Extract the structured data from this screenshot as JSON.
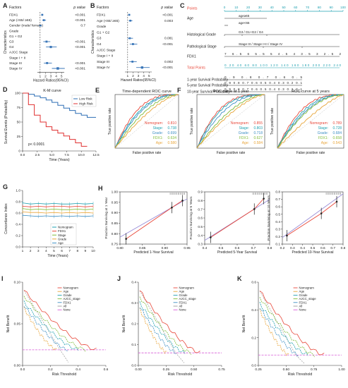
{
  "panels": {
    "A": {
      "letter": "A",
      "header_factor": "Factors",
      "header_p": "p value",
      "ylabel": "Characteristics",
      "xlabel": "Hazard Ratios(95%CI)",
      "ticks": [
        "1",
        "2",
        "3",
        "4",
        "5"
      ],
      "rows": [
        {
          "label": "FDX1",
          "p": "<0.001",
          "hr": 1.4,
          "lo": 1.2,
          "hi": 1.6
        },
        {
          "label": "Age (<65/ ≥65)",
          "p": "<0.001",
          "hr": 1.7,
          "lo": 1.4,
          "hi": 2.1
        },
        {
          "label": "Gender (male/ female)",
          "p": "0.7",
          "hr": 1.05,
          "lo": 0.8,
          "hi": 1.3
        },
        {
          "label": "Grade",
          "p": "",
          "hr": null
        },
        {
          "label": "G1 + G2",
          "p": "",
          "hr": null
        },
        {
          "label": "G3",
          "p": "<0.001",
          "hr": 2.2,
          "lo": 1.6,
          "hi": 2.9
        },
        {
          "label": "G4",
          "p": "<0.001",
          "hr": 3.0,
          "lo": 2.1,
          "hi": 4.1
        },
        {
          "label": "AJCC Stage",
          "p": "",
          "hr": null
        },
        {
          "label": "Stage I + II",
          "p": "",
          "hr": null
        },
        {
          "label": "Stage III",
          "p": "<0.001",
          "hr": 2.3,
          "lo": 1.7,
          "hi": 3.2
        },
        {
          "label": "Stage IV",
          "p": "<0.001",
          "hr": 4.3,
          "lo": 3.2,
          "hi": 5.6
        }
      ]
    },
    "B": {
      "letter": "B",
      "header_factor": "Factors",
      "header_p": "p value",
      "ylabel": "Characteristics",
      "xlabel": "Hazard Ratios(95%CI)",
      "ticks": [
        "1",
        "2",
        "3",
        "4",
        "5"
      ],
      "rows": [
        {
          "label": "FDX1",
          "p": "<0.001",
          "hr": 1.3,
          "lo": 1.1,
          "hi": 1.5
        },
        {
          "label": "Age (<65/ ≥65)",
          "p": "0.003",
          "hr": 1.5,
          "lo": 1.2,
          "hi": 1.9
        },
        {
          "label": "Grade",
          "p": "",
          "hr": null
        },
        {
          "label": "G1 + G2",
          "p": "",
          "hr": null
        },
        {
          "label": "G3",
          "p": "0.081",
          "hr": 1.4,
          "lo": 1.0,
          "hi": 2.0
        },
        {
          "label": "G4",
          "p": "<0.001",
          "hr": 2.0,
          "lo": 1.4,
          "hi": 2.8
        },
        {
          "label": "AJCC Stage",
          "p": "",
          "hr": null
        },
        {
          "label": "Stage I + II",
          "p": "",
          "hr": null
        },
        {
          "label": "Stage III",
          "p": "0.002",
          "hr": 1.9,
          "lo": 1.3,
          "hi": 2.7
        },
        {
          "label": "Stage IV",
          "p": "<0.001",
          "hr": 3.7,
          "lo": 2.6,
          "hi": 5.1
        }
      ]
    },
    "C": {
      "letter": "C",
      "points_label": "Points",
      "points_ticks": [
        "0",
        "10",
        "20",
        "30",
        "40",
        "50",
        "60",
        "70",
        "80",
        "90",
        "100"
      ],
      "rows": [
        {
          "label": "Age",
          "note": "age≥65"
        },
        {
          "label": "",
          "note": "age<65"
        },
        {
          "label": "Histological Grade",
          "note": "G3 / G1+G2 / G4"
        },
        {
          "label": "Pathological Stage",
          "note": "Stage III / Stage I+II / Stage IV"
        },
        {
          "label": "FDX1",
          "scale": "7  6.5  6  5.5  5  4.5  4  3.5  3  2.5  2"
        },
        {
          "label": "Total Points",
          "scale": "0  20  40  60  80  100  120  140  160  180  200  220  240"
        },
        {
          "label": "1-year Survival Probability",
          "scale": "0.9  0.8  0.7  0.6  0.5"
        },
        {
          "label": "5-year Survival Probability",
          "scale": "0.9  0.8  0.7 0.6 0.5 0.4 0.3 0.2  0.1"
        },
        {
          "label": "10-year Survival Probability",
          "scale": "0.9  0.8  0.7 0.6 0.5 0.4 0.3 0.2  0.1"
        }
      ]
    },
    "D": {
      "letter": "D",
      "title": "K-M curve",
      "legend": [
        "Low Risk",
        "High Risk"
      ],
      "ylabel": "Survival Events (Probability)",
      "xlabel": "Time (Years)",
      "pvalue": "p< 0.0001",
      "xticks": [
        "0.0",
        "2.5",
        "5.0",
        "7.5",
        "10.0",
        "12.5"
      ],
      "yticks": [
        "0",
        "25",
        "50",
        "75",
        "100"
      ]
    },
    "E": {
      "letter": "E",
      "title": "Time-dependent ROC curve",
      "ylabel": "True positive rate",
      "xlabel": "False positive rate",
      "auc": [
        {
          "name": "Nomogram:",
          "value": "0.810",
          "color": "#e8483a"
        },
        {
          "name": "Stage:",
          "value": "0.738",
          "color": "#1fa0b0"
        },
        {
          "name": "Grade:",
          "value": "0.699",
          "color": "#3d8fc4"
        },
        {
          "name": "FDX1:",
          "value": "0.634",
          "color": "#7fbb3a"
        },
        {
          "name": "Age:",
          "value": "0.580",
          "color": "#e8a53a"
        }
      ]
    },
    "F1": {
      "letter": "F",
      "title": "ROC curve at 1 year",
      "ylabel": "True positive rate",
      "xlabel": "False positive rate",
      "auc": [
        {
          "name": "Nomogram:",
          "value": "0.855",
          "color": "#e8483a"
        },
        {
          "name": "Stage:",
          "value": "0.803",
          "color": "#1fa0b0"
        },
        {
          "name": "Grade:",
          "value": "0.718",
          "color": "#3d8fc4"
        },
        {
          "name": "FDX1:",
          "value": "0.627",
          "color": "#7fbb3a"
        },
        {
          "name": "Age:",
          "value": "0.584",
          "color": "#e8a53a"
        }
      ]
    },
    "F2": {
      "title": "ROC curve at 5 years",
      "ylabel": "True positive rate",
      "xlabel": "False positive rate",
      "auc": [
        {
          "name": "Nomogram:",
          "value": "0.789",
          "color": "#e8483a"
        },
        {
          "name": "Stage:",
          "value": "0.728",
          "color": "#1fa0b0"
        },
        {
          "name": "Grade:",
          "value": "0.684",
          "color": "#3d8fc4"
        },
        {
          "name": "FDX1:",
          "value": "0.658",
          "color": "#7fbb3a"
        },
        {
          "name": "Age:",
          "value": "0.543",
          "color": "#e8a53a"
        }
      ]
    },
    "G": {
      "letter": "G",
      "ylabel": "Concordance Index",
      "xlabel": "Time (Years)",
      "xticks": [
        "1",
        "2",
        "3",
        "4",
        "5",
        "6",
        "7",
        "8",
        "9",
        "10"
      ],
      "yticks": [
        "0.0",
        "0.2",
        "0.4",
        "0.6",
        "0.8",
        "1.0"
      ],
      "legend": [
        {
          "name": "Nomogram",
          "color": "#1fa0b0"
        },
        {
          "name": "FDX1",
          "color": "#e8483a"
        },
        {
          "name": "Stage",
          "color": "#7fbb3a"
        },
        {
          "name": "Grade",
          "color": "#e8a53a"
        },
        {
          "name": "Age",
          "color": "#3d8fc4"
        }
      ]
    },
    "H1": {
      "letter": "H",
      "ylabel": "Fraction Surviving at 1 Year",
      "xlabel": "Predicted 1-Year Survival",
      "xticks": [
        "0.80",
        "0.85",
        "0.90",
        "0.95"
      ],
      "yticks": [
        "0.75",
        "0.80",
        "0.85",
        "0.90",
        "0.95",
        "1.00"
      ]
    },
    "H2": {
      "ylabel": "Fraction Surviving at 5 Years",
      "xlabel": "Predicted 5-Year Survival",
      "xticks": [
        "0.4",
        "0.5",
        "0.6",
        "0.7",
        "0.8"
      ],
      "yticks": [
        "0.3",
        "0.4",
        "0.5",
        "0.6",
        "0.7",
        "0.8",
        "0.9"
      ]
    },
    "H3": {
      "ylabel": "Fraction Surviving at 10 Years",
      "xlabel": "Predicted 10-Year Survival",
      "xticks": [
        "0.2",
        "0.3",
        "0.4",
        "0.5",
        "0.6",
        "0.7",
        "0.8"
      ],
      "yticks": [
        "0.1",
        "0.2",
        "0.3",
        "0.4",
        "0.5",
        "0.6",
        "0.7",
        "0.8"
      ]
    },
    "I": {
      "letter": "I",
      "ylabel": "Net Benefit",
      "xlabel": "Risk Threshold",
      "xticks": [
        "0.0",
        "0.2",
        "0.4",
        "0.6"
      ],
      "yticks": [
        "0.00",
        "0.05",
        "0.10"
      ],
      "legend": [
        "Nomogram",
        "Age",
        "Grade",
        "AJCC_stage",
        "FDX1",
        "All",
        "None"
      ]
    },
    "J": {
      "letter": "J",
      "ylabel": "Net Benefit",
      "xlabel": "Risk Threshold",
      "xticks": [
        "0.00",
        "0.25",
        "0.50",
        "0.75"
      ],
      "yticks": [
        "0.0",
        "0.1",
        "0.2",
        "0.3",
        "0.4"
      ],
      "legend": [
        "Nomogram",
        "Age",
        "Grade",
        "AJCC_stage",
        "FDX1",
        "All",
        "None"
      ]
    },
    "K": {
      "letter": "K",
      "ylabel": "Net Benefit",
      "xlabel": "Risk Threshold",
      "xticks": [
        "0.25",
        "0.50",
        "0.75",
        "1.00"
      ],
      "yticks": [
        "0.0",
        "0.2",
        "0.4",
        "0.6"
      ],
      "legend": [
        "Nomogram",
        "Age",
        "Grade",
        "AJCC_stage",
        "FDX1",
        "All",
        "None"
      ]
    }
  },
  "colors": {
    "forest": "#3a76b8",
    "nomogram": "#e8483a",
    "age": "#e8a53a",
    "grade": "#1fa0b0",
    "stage": "#7fbb3a",
    "fdx1": "#3d8fc4",
    "all": "#999999",
    "none": "#d85ad8",
    "lowrisk": "#2e6fb5",
    "highrisk": "#e03030"
  },
  "chart_data": [
    {
      "type": "scatter",
      "title": "",
      "panel": "A",
      "categories": [
        "FDX1",
        "Age (<65/ ≥65)",
        "Gender (male/ female)",
        "G3",
        "G4",
        "Stage III",
        "Stage IV"
      ],
      "values": [
        1.4,
        1.7,
        1.05,
        2.2,
        3.0,
        2.3,
        4.3
      ],
      "xlabel": "Hazard Ratios(95%CI)",
      "ylabel": "Characteristics",
      "xlim": [
        0.5,
        5.5
      ]
    },
    {
      "type": "scatter",
      "title": "",
      "panel": "B",
      "categories": [
        "FDX1",
        "Age (<65/ ≥65)",
        "G3",
        "G4",
        "Stage III",
        "Stage IV"
      ],
      "values": [
        1.3,
        1.5,
        1.4,
        2.0,
        1.9,
        3.7
      ],
      "xlabel": "Hazard Ratios(95%CI)",
      "ylabel": "Characteristics",
      "xlim": [
        0.5,
        5.5
      ]
    },
    {
      "type": "line",
      "title": "K-M curve",
      "panel": "D",
      "x": [
        0,
        1,
        2,
        3,
        4,
        5,
        6,
        7,
        8,
        9,
        10,
        11,
        12.5
      ],
      "series": [
        {
          "name": "Low Risk",
          "values": [
            100,
            98,
            95,
            92,
            88,
            84,
            79,
            74,
            70,
            65,
            62,
            58,
            58
          ]
        },
        {
          "name": "High Risk",
          "values": [
            100,
            80,
            62,
            50,
            42,
            36,
            31,
            26,
            20,
            14,
            8,
            8,
            null
          ]
        }
      ],
      "xlabel": "Time (Years)",
      "ylabel": "Survival Events (Probability)",
      "xlim": [
        0,
        12.5
      ],
      "ylim": [
        0,
        100
      ]
    },
    {
      "type": "line",
      "title": "Time-dependent ROC curve",
      "panel": "E",
      "series": [
        {
          "name": "Nomogram",
          "auc": 0.81
        },
        {
          "name": "Stage",
          "auc": 0.738
        },
        {
          "name": "Grade",
          "auc": 0.699
        },
        {
          "name": "FDX1",
          "auc": 0.634
        },
        {
          "name": "Age",
          "auc": 0.58
        }
      ],
      "xlabel": "False positive rate",
      "ylabel": "True positive rate",
      "xlim": [
        0,
        1
      ],
      "ylim": [
        0,
        1
      ]
    },
    {
      "type": "line",
      "title": "ROC curve at 1 year",
      "panel": "F1",
      "series": [
        {
          "name": "Nomogram",
          "auc": 0.855
        },
        {
          "name": "Stage",
          "auc": 0.803
        },
        {
          "name": "Grade",
          "auc": 0.718
        },
        {
          "name": "FDX1",
          "auc": 0.627
        },
        {
          "name": "Age",
          "auc": 0.584
        }
      ],
      "xlabel": "False positive rate",
      "ylabel": "True positive rate",
      "xlim": [
        0,
        1
      ],
      "ylim": [
        0,
        1
      ]
    },
    {
      "type": "line",
      "title": "ROC curve at 5 years",
      "panel": "F2",
      "series": [
        {
          "name": "Nomogram",
          "auc": 0.789
        },
        {
          "name": "Stage",
          "auc": 0.728
        },
        {
          "name": "Grade",
          "auc": 0.684
        },
        {
          "name": "FDX1",
          "auc": 0.658
        },
        {
          "name": "Age",
          "auc": 0.543
        }
      ],
      "xlabel": "False positive rate",
      "ylabel": "True positive rate",
      "xlim": [
        0,
        1
      ],
      "ylim": [
        0,
        1
      ]
    },
    {
      "type": "line",
      "title": "",
      "panel": "G",
      "x": [
        1,
        2,
        3,
        4,
        5,
        6,
        7,
        8,
        9,
        10
      ],
      "series": [
        {
          "name": "Nomogram",
          "values": [
            0.78,
            0.76,
            0.77,
            0.76,
            0.77,
            0.76,
            0.76,
            0.77,
            0.76,
            0.77
          ]
        },
        {
          "name": "FDX1",
          "values": [
            0.72,
            0.71,
            0.72,
            0.71,
            0.72,
            0.72,
            0.71,
            0.72,
            0.71,
            0.72
          ]
        },
        {
          "name": "Stage",
          "values": [
            0.68,
            0.66,
            0.67,
            0.66,
            0.67,
            0.66,
            0.66,
            0.67,
            0.66,
            0.67
          ]
        },
        {
          "name": "Grade",
          "values": [
            0.62,
            0.61,
            0.61,
            0.6,
            0.61,
            0.6,
            0.61,
            0.6,
            0.61,
            0.6
          ]
        },
        {
          "name": "Age",
          "values": [
            0.56,
            0.55,
            0.54,
            0.55,
            0.54,
            0.55,
            0.54,
            0.55,
            0.54,
            0.55
          ]
        }
      ],
      "xlabel": "Time (Years)",
      "ylabel": "Concordance Index",
      "xlim": [
        1,
        10
      ],
      "ylim": [
        0,
        1
      ]
    },
    {
      "type": "line",
      "title": "",
      "panel": "H1",
      "x": [
        0.78,
        0.93,
        0.965
      ],
      "series": [
        {
          "name": "",
          "values": [
            0.75,
            0.93,
            0.97
          ]
        }
      ],
      "xlabel": "Predicted 1-Year Survival",
      "ylabel": "Fraction Surviving at 1 Year",
      "xlim": [
        0.76,
        0.98
      ],
      "ylim": [
        0.72,
        1.02
      ]
    },
    {
      "type": "line",
      "title": "",
      "panel": "H2",
      "x": [
        0.35,
        0.72,
        0.8
      ],
      "series": [
        {
          "name": "",
          "values": [
            0.34,
            0.72,
            0.86
          ]
        }
      ],
      "xlabel": "Predicted 5-Year Survival",
      "ylabel": "Fraction Surviving at 5 Years",
      "xlim": [
        0.3,
        0.85
      ],
      "ylim": [
        0.25,
        0.95
      ]
    },
    {
      "type": "line",
      "title": "",
      "panel": "H3",
      "x": [
        0.2,
        0.58,
        0.75
      ],
      "series": [
        {
          "name": "",
          "values": [
            0.18,
            0.52,
            0.7
          ]
        }
      ],
      "xlabel": "Predicted 10-Year Survival",
      "ylabel": "Fraction Surviving at 10 Years",
      "xlim": [
        0.15,
        0.82
      ],
      "ylim": [
        0.05,
        0.85
      ]
    },
    {
      "type": "line",
      "title": "",
      "panel": "I",
      "series": [
        {
          "name": "Nomogram"
        },
        {
          "name": "Age"
        },
        {
          "name": "Grade"
        },
        {
          "name": "AJCC_stage"
        },
        {
          "name": "FDX1"
        },
        {
          "name": "All"
        },
        {
          "name": "None"
        }
      ],
      "xlabel": "Risk Threshold",
      "ylabel": "Net Benefit",
      "xlim": [
        0,
        0.75
      ],
      "ylim": [
        -0.03,
        0.13
      ]
    },
    {
      "type": "line",
      "title": "",
      "panel": "J",
      "series": [
        {
          "name": "Nomogram"
        },
        {
          "name": "Age"
        },
        {
          "name": "Grade"
        },
        {
          "name": "AJCC_stage"
        },
        {
          "name": "FDX1"
        },
        {
          "name": "All"
        },
        {
          "name": "None"
        }
      ],
      "xlabel": "Risk Threshold",
      "ylabel": "Net Benefit",
      "xlim": [
        0,
        0.85
      ],
      "ylim": [
        -0.08,
        0.45
      ]
    },
    {
      "type": "line",
      "title": "",
      "panel": "K",
      "series": [
        {
          "name": "Nomogram"
        },
        {
          "name": "Age"
        },
        {
          "name": "Grade"
        },
        {
          "name": "AJCC_stage"
        },
        {
          "name": "FDX1"
        },
        {
          "name": "All"
        },
        {
          "name": "None"
        }
      ],
      "xlabel": "Risk Threshold",
      "ylabel": "Net Benefit",
      "xlim": [
        0.1,
        1.0
      ],
      "ylim": [
        -0.1,
        0.7
      ]
    }
  ]
}
